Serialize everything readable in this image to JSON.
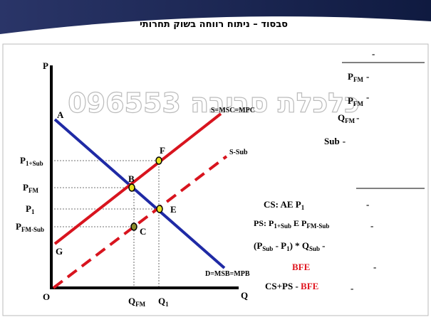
{
  "header": {
    "title": "סבסוד – ניתוח רווחה בשוק תחרותי"
  },
  "watermark": "096553 כלכלת סביבה",
  "axes": {
    "y": "P",
    "x": "Q",
    "origin": "O"
  },
  "curves": {
    "supply": "S=MSC=MPC",
    "subsidized": "S-Sub",
    "demand": "D=MSB=MPB"
  },
  "points": {
    "A": "A",
    "B": "B",
    "C": "C",
    "E": "E",
    "F": "F",
    "G": "G"
  },
  "price_labels": [
    {
      "main": "P",
      "sub": "1+Sub"
    },
    {
      "main": "P",
      "sub": "FM"
    },
    {
      "main": "P",
      "sub": "1"
    },
    {
      "main": "P",
      "sub": "FM-Sub"
    }
  ],
  "quantity_labels": [
    {
      "main": "Q",
      "sub": "FM"
    },
    {
      "main": "Q",
      "sub": "1"
    }
  ],
  "notes_top": {
    "dash": "-",
    "items": [
      {
        "main": "P",
        "sub": "FM",
        "tail": "-"
      },
      {
        "main": "P",
        "sub": "FM",
        "tail": "-"
      },
      {
        "main": "Q",
        "sub": "FM",
        "tail": "-"
      },
      {
        "main": "Sub",
        "tail": "-"
      }
    ]
  },
  "notes_bottom": {
    "cs": {
      "text": "CS:  AE  P",
      "sub": "1",
      "tail": "-"
    },
    "ps": {
      "text": "PS:  P",
      "sub1": "1+Sub",
      "mid": " E P",
      "sub2": "FM-Sub",
      "tail": "-"
    },
    "cost": {
      "a": "(P",
      "sub1": "Sub",
      "b": " - P",
      "sub2": "1",
      "c": ") * Q",
      "sub3": "Sub",
      "tail": "-"
    },
    "dwl": {
      "text": "BFE",
      "tail": "-"
    },
    "total": {
      "text": "CS+PS - ",
      "red": "BFE",
      "tail": "-"
    }
  }
}
